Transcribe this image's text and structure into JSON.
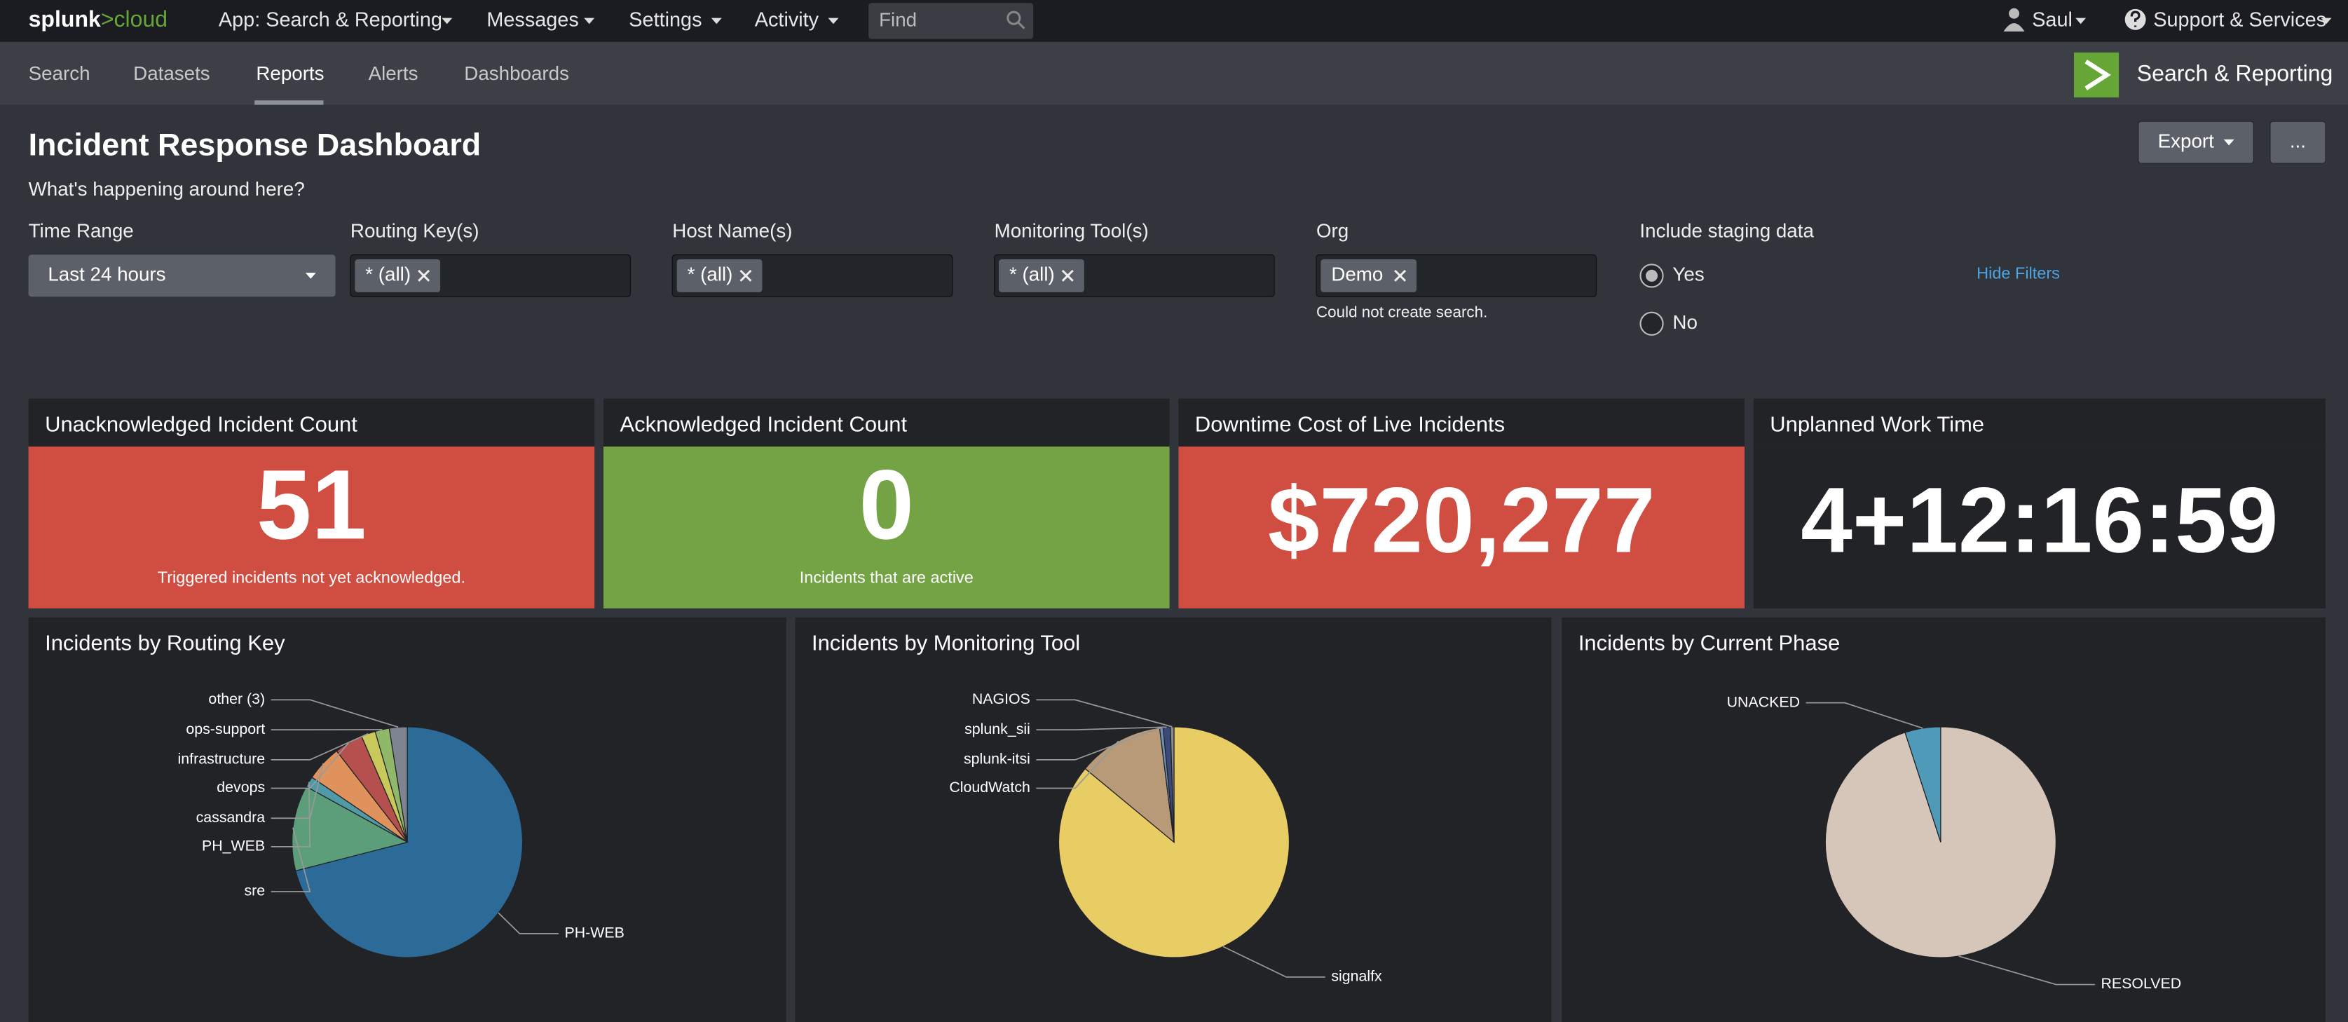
{
  "nav": {
    "logo": [
      "splunk",
      ">cloud"
    ],
    "menus": [
      "App: Search & Reporting",
      "Messages",
      "Settings",
      "Activity"
    ],
    "search_placeholder": "Find",
    "user": "Saul",
    "support": "Support & Services"
  },
  "tabs": {
    "items": [
      "Search",
      "Datasets",
      "Reports",
      "Alerts",
      "Dashboards"
    ],
    "active_index": 2,
    "app_name": "Search & Reporting"
  },
  "header": {
    "title": "Incident Response Dashboard",
    "description": "What's happening around here?",
    "buttons": [
      "Export",
      "..."
    ]
  },
  "filters": [
    {
      "label": "Time Range",
      "value": "Last 24 hours"
    },
    {
      "label": "Routing Key(s)",
      "value": "* (all)"
    },
    {
      "label": "Host Name(s)",
      "value": "* (all)"
    },
    {
      "label": "Monitoring Tool(s)",
      "value": "* (all)"
    },
    {
      "label": "Org",
      "value": "Demo",
      "note": "Could not create search."
    },
    {
      "label": "Include staging data",
      "options": [
        "Yes",
        "No"
      ],
      "selected_index": 0
    }
  ],
  "hide_filters": "Hide Filters",
  "single_values": [
    {
      "title": "Unacknowledged Incident Count",
      "value": 51,
      "caption": "Triggered incidents not yet acknowledged.",
      "color": "#d04d41"
    },
    {
      "title": "Acknowledged Incident Count",
      "value": 0,
      "caption": "Incidents that are active",
      "color": "#74a345"
    },
    {
      "title": "Downtime Cost of Live Incidents",
      "value": "$720,277",
      "color": "#d04d41"
    },
    {
      "title": "Unplanned Work Time",
      "value": "4+12:16:59",
      "color": "#212327"
    }
  ],
  "chart_data": [
    {
      "type": "pie",
      "title": "Incidents by Routing Key",
      "categories": [
        "PH-WEB",
        "sre",
        "PH_WEB",
        "cassandra",
        "devops",
        "infrastructure",
        "ops-support",
        "other (3)"
      ],
      "values": [
        71,
        12,
        1.5,
        5,
        4,
        2,
        2,
        2.5
      ],
      "colors": [
        "#2c6b98",
        "#5d9e7a",
        "#4f9aa6",
        "#e0925c",
        "#b5504e",
        "#c8c95a",
        "#8fb868",
        "#7f8590"
      ]
    },
    {
      "type": "pie",
      "title": "Incidents by Monitoring Tool",
      "categories": [
        "signalfx",
        "CloudWatch",
        "splunk-itsi",
        "splunk_sii",
        "NAGIOS"
      ],
      "values": [
        86,
        12,
        0.5,
        1,
        0.5
      ],
      "colors": [
        "#e8cc64",
        "#b89a78",
        "#6d8fb0",
        "#3c4a7a",
        "#8a8a8a"
      ]
    },
    {
      "type": "pie",
      "title": "Incidents by Current Phase",
      "categories": [
        "RESOLVED",
        "UNACKED"
      ],
      "values": [
        95,
        5
      ],
      "colors": [
        "#d6c6ba",
        "#4f9ab8"
      ]
    }
  ]
}
